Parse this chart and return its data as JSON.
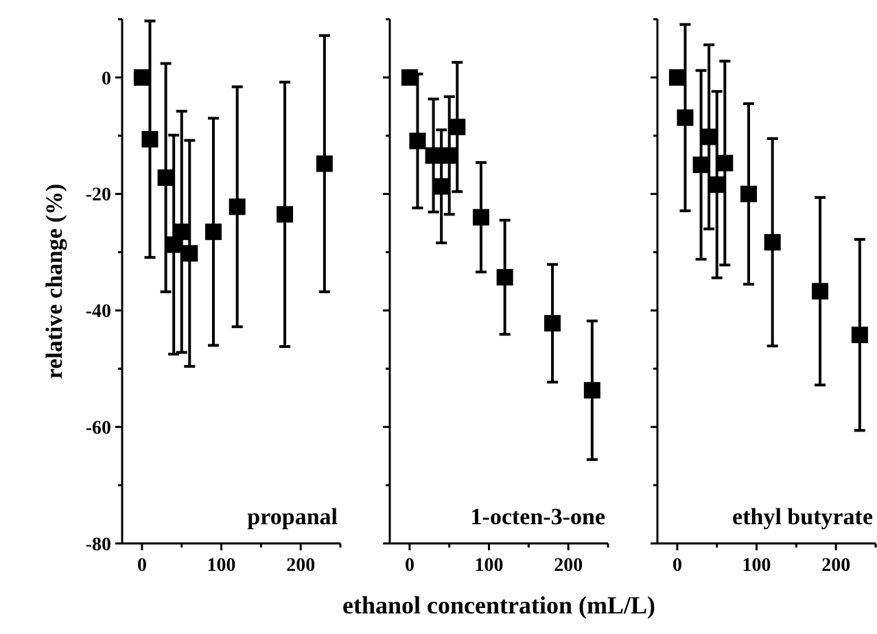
{
  "chart_data": [
    {
      "type": "scatter",
      "ylabel": "relative change (%)",
      "annotations": [
        "propanal"
      ],
      "marker": "square",
      "x": [
        0,
        10,
        30,
        40,
        50,
        60,
        90,
        120,
        180,
        230
      ],
      "xlim": [
        -25,
        250
      ],
      "xticks": [
        0,
        {
          "value": 50,
          "label": null
        },
        100,
        {
          "value": 150,
          "label": null
        },
        200,
        {
          "value": 250,
          "label": null
        }
      ],
      "ylim": [
        -80,
        10
      ],
      "yticks": [
        {
          "value": 10,
          "label": null
        },
        0,
        {
          "value": -10,
          "label": null
        },
        -20,
        {
          "value": -30,
          "label": null
        },
        -40,
        {
          "value": -50,
          "label": null
        },
        -60,
        {
          "value": -70,
          "label": null
        },
        -80
      ],
      "series": [
        {
          "color": "#000000",
          "values": [
            0,
            -10.6,
            -17.2,
            -28.7,
            -26.5,
            -30.2,
            -26.5,
            -22.2,
            -23.5,
            -14.8
          ],
          "errors": [
            null,
            20.3,
            19.6,
            18.8,
            20.7,
            19.4,
            19.5,
            20.6,
            22.7,
            22
          ]
        }
      ]
    },
    {
      "type": "scatter",
      "xlabel": "ethanol concentration (mL/L)",
      "annotations": [
        "1-octen-3-one"
      ],
      "marker": "square",
      "tick_labels": "x",
      "x": [
        0,
        10,
        30,
        40,
        50,
        60,
        90,
        120,
        180,
        230
      ],
      "xlim": [
        -25,
        250
      ],
      "xticks": [
        0,
        {
          "value": 50,
          "label": null
        },
        100,
        {
          "value": 150,
          "label": null
        },
        200,
        {
          "value": 250,
          "label": null
        }
      ],
      "ylim": [
        -80,
        10
      ],
      "yticks": [
        {
          "value": 10,
          "label": null
        },
        0,
        {
          "value": -10,
          "label": null
        },
        -20,
        {
          "value": -30,
          "label": null
        },
        -40,
        {
          "value": -50,
          "label": null
        },
        -60,
        {
          "value": -70,
          "label": null
        },
        -80
      ],
      "series": [
        {
          "color": "#000000",
          "values": [
            0,
            -10.9,
            -13.4,
            -18.7,
            -13.4,
            -8.5,
            -24.0,
            -34.3,
            -42.2,
            -53.7
          ],
          "errors": [
            null,
            11.5,
            9.7,
            9.7,
            10.1,
            11.1,
            9.4,
            9.8,
            10.1,
            11.9
          ]
        }
      ]
    },
    {
      "type": "scatter",
      "annotations": [
        "ethyl butyrate"
      ],
      "marker": "square",
      "tick_labels": "x",
      "x": [
        0,
        10,
        30,
        40,
        50,
        60,
        90,
        120,
        180,
        230
      ],
      "xlim": [
        -25,
        250
      ],
      "xticks": [
        0,
        {
          "value": 50,
          "label": null
        },
        100,
        {
          "value": 150,
          "label": null
        },
        200,
        {
          "value": 250,
          "label": null
        }
      ],
      "ylim": [
        -80,
        10
      ],
      "yticks": [
        {
          "value": 10,
          "label": null
        },
        0,
        {
          "value": -10,
          "label": null
        },
        -20,
        {
          "value": -30,
          "label": null
        },
        -40,
        {
          "value": -50,
          "label": null
        },
        -60,
        {
          "value": -70,
          "label": null
        },
        -80
      ],
      "series": [
        {
          "color": "#000000",
          "values": [
            0,
            -6.9,
            -15.0,
            -10.2,
            -18.4,
            -14.7,
            -20.0,
            -28.3,
            -36.7,
            -44.2
          ],
          "errors": [
            null,
            16,
            16.2,
            15.8,
            16,
            17.5,
            15.5,
            17.8,
            16.1,
            16.4
          ]
        }
      ]
    }
  ]
}
